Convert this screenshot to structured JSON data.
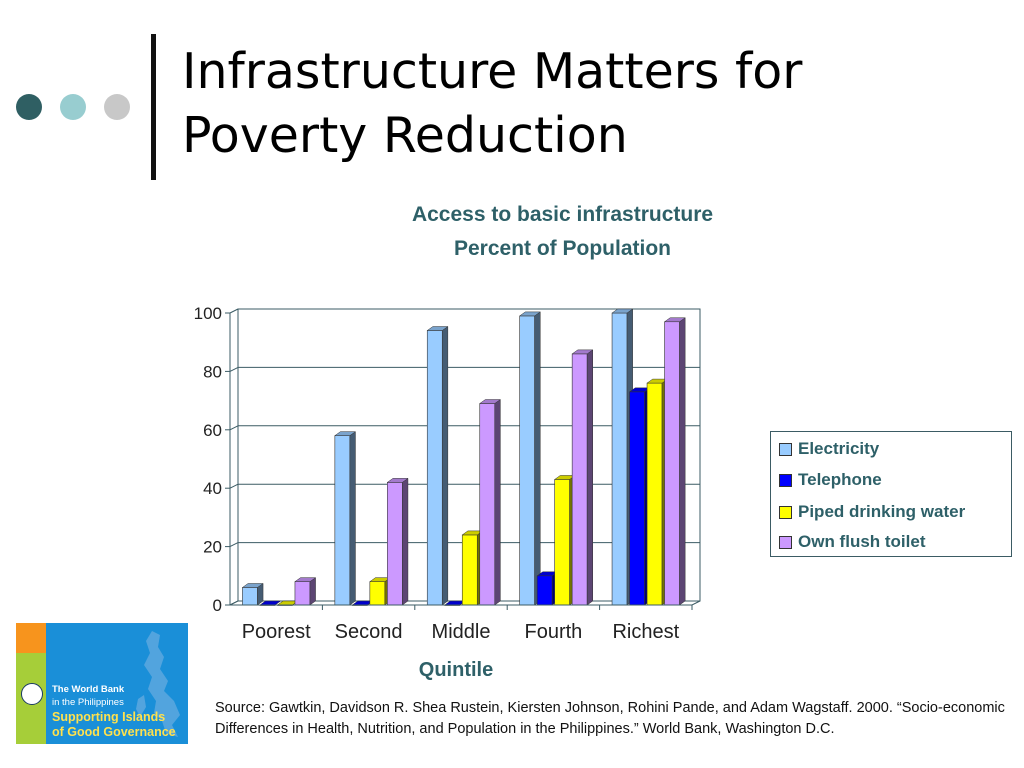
{
  "slide": {
    "title_line1": "Infrastructure Matters for",
    "title_line2": "Poverty Reduction",
    "dot_colors": [
      "#2F5F63",
      "#98CDD0",
      "#C8C8C8"
    ]
  },
  "chart_data": {
    "type": "bar",
    "title": "Access to basic infrastructure",
    "subtitle": "Percent of Population",
    "xlabel": "Quintile",
    "ylabel": "",
    "categories": [
      "Poorest",
      "Second",
      "Middle",
      "Fourth",
      "Richest"
    ],
    "ylim": [
      0,
      100
    ],
    "yticks": [
      "0",
      "20",
      "40",
      "60",
      "80",
      "100"
    ],
    "grid": true,
    "legend_position": "right",
    "series": [
      {
        "name": "Electricity",
        "color": "#99CCFF",
        "values": [
          6,
          58,
          94,
          99,
          100
        ]
      },
      {
        "name": "Telephone",
        "color": "#0000FF",
        "values": [
          0,
          0,
          0,
          10,
          73
        ]
      },
      {
        "name": "Piped drinking water",
        "color": "#FFFF00",
        "values": [
          0,
          8,
          24,
          43,
          76
        ]
      },
      {
        "name": "Own flush toilet",
        "color": "#CC99FF",
        "values": [
          8,
          42,
          69,
          86,
          97
        ]
      }
    ]
  },
  "logo": {
    "line1": "The World Bank",
    "line2": "in the Philippines",
    "line3": "Supporting Islands",
    "line4": "of Good Governance"
  },
  "source": {
    "text": "Source: Gawtkin, Davidson R. Shea Rustein, Kiersten Johnson, Rohini Pande, and Adam Wagstaff. 2000. “Socio-economic Differences in Health, Nutrition, and Population in the Philippines.” World Bank, Washington D.C."
  }
}
